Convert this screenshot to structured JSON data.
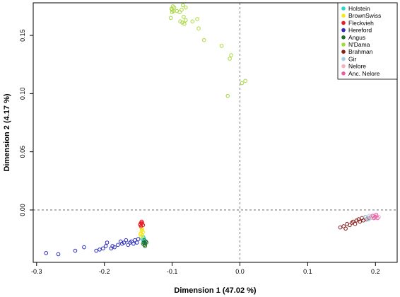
{
  "chart_data": {
    "type": "scatter",
    "xlabel": "Dimension 1   (47.02 %)",
    "ylabel": "Dimension 2   (4.17 %)",
    "xlim": [
      -0.305,
      0.232
    ],
    "ylim": [
      -0.045,
      0.178
    ],
    "x_ticks": [
      -0.3,
      -0.2,
      -0.1,
      0.0,
      0.1,
      0.2
    ],
    "x_tick_labels": [
      "-0.3",
      "-0.2",
      "-0.1",
      "0.0",
      "0.1",
      "0.2"
    ],
    "y_ticks": [
      0.0,
      0.05,
      0.1,
      0.15
    ],
    "y_tick_labels": [
      "0.00",
      "0.05",
      "0.10",
      "0.15"
    ],
    "reference_lines": {
      "x": 0,
      "y": 0
    },
    "legend_position": "top-right",
    "series": [
      {
        "name": "Holstein",
        "color": "#2ad8d2",
        "points": [
          [
            -0.143,
            -0.026
          ],
          [
            -0.142,
            -0.024
          ],
          [
            -0.141,
            -0.027
          ],
          [
            -0.144,
            -0.025
          ],
          [
            -0.14,
            -0.028
          ],
          [
            -0.143,
            -0.023
          ]
        ]
      },
      {
        "name": "BrownSwiss",
        "color": "#f6e81e",
        "points": [
          [
            -0.145,
            -0.018
          ],
          [
            -0.146,
            -0.02
          ],
          [
            -0.144,
            -0.022
          ],
          [
            -0.147,
            -0.021
          ],
          [
            -0.145,
            -0.016
          ],
          [
            -0.143,
            -0.019
          ],
          [
            -0.146,
            -0.023
          ],
          [
            -0.144,
            -0.017
          ]
        ]
      },
      {
        "name": "Fleckvieh",
        "color": "#e81c24",
        "points": [
          [
            -0.146,
            -0.011
          ],
          [
            -0.145,
            -0.012
          ],
          [
            -0.147,
            -0.013
          ],
          [
            -0.144,
            -0.011
          ],
          [
            -0.146,
            -0.014
          ],
          [
            -0.145,
            -0.01
          ],
          [
            -0.143,
            -0.013
          ],
          [
            -0.147,
            -0.012
          ]
        ]
      },
      {
        "name": "Hereford",
        "color": "#2b2bbd",
        "points": [
          [
            -0.286,
            -0.037
          ],
          [
            -0.268,
            -0.038
          ],
          [
            -0.243,
            -0.035
          ],
          [
            -0.23,
            -0.032
          ],
          [
            -0.212,
            -0.035
          ],
          [
            -0.207,
            -0.034
          ],
          [
            -0.202,
            -0.033
          ],
          [
            -0.198,
            -0.031
          ],
          [
            -0.196,
            -0.028
          ],
          [
            -0.19,
            -0.033
          ],
          [
            -0.188,
            -0.031
          ],
          [
            -0.185,
            -0.032
          ],
          [
            -0.18,
            -0.03
          ],
          [
            -0.176,
            -0.027
          ],
          [
            -0.174,
            -0.029
          ],
          [
            -0.171,
            -0.028
          ],
          [
            -0.168,
            -0.026
          ],
          [
            -0.165,
            -0.03
          ],
          [
            -0.162,
            -0.028
          ],
          [
            -0.16,
            -0.027
          ],
          [
            -0.157,
            -0.029
          ],
          [
            -0.155,
            -0.026
          ],
          [
            -0.152,
            -0.028
          ],
          [
            -0.15,
            -0.025
          ]
        ]
      },
      {
        "name": "Angus",
        "color": "#1f6b2a",
        "points": [
          [
            -0.142,
            -0.028
          ],
          [
            -0.14,
            -0.029
          ],
          [
            -0.141,
            -0.03
          ],
          [
            -0.139,
            -0.027
          ],
          [
            -0.143,
            -0.029
          ],
          [
            -0.14,
            -0.031
          ],
          [
            -0.138,
            -0.028
          ],
          [
            -0.141,
            -0.026
          ]
        ]
      },
      {
        "name": "N'Dama",
        "color": "#a8d83c",
        "points": [
          [
            -0.099,
            0.175
          ],
          [
            -0.1,
            0.172
          ],
          [
            -0.098,
            0.171
          ],
          [
            -0.101,
            0.173
          ],
          [
            -0.097,
            0.174
          ],
          [
            -0.1,
            0.17
          ],
          [
            -0.102,
            0.165
          ],
          [
            -0.093,
            0.171
          ],
          [
            -0.089,
            0.17
          ],
          [
            -0.086,
            0.172
          ],
          [
            -0.084,
            0.176
          ],
          [
            -0.08,
            0.174
          ],
          [
            -0.088,
            0.162
          ],
          [
            -0.085,
            0.161
          ],
          [
            -0.082,
            0.16
          ],
          [
            -0.083,
            0.166
          ],
          [
            -0.08,
            0.163
          ],
          [
            -0.07,
            0.162
          ],
          [
            -0.063,
            0.164
          ],
          [
            -0.061,
            0.156
          ],
          [
            -0.053,
            0.146
          ],
          [
            -0.027,
            0.141
          ],
          [
            -0.013,
            0.133
          ],
          [
            -0.015,
            0.13
          ],
          [
            -0.018,
            0.098
          ],
          [
            0.008,
            0.111
          ],
          [
            0.003,
            0.109
          ]
        ]
      },
      {
        "name": "Brahman",
        "color": "#8b1d1d",
        "points": [
          [
            0.148,
            -0.015
          ],
          [
            0.153,
            -0.014
          ],
          [
            0.156,
            -0.016
          ],
          [
            0.158,
            -0.012
          ],
          [
            0.162,
            -0.013
          ],
          [
            0.165,
            -0.011
          ],
          [
            0.167,
            -0.01
          ],
          [
            0.17,
            -0.012
          ],
          [
            0.172,
            -0.009
          ],
          [
            0.175,
            -0.008
          ],
          [
            0.177,
            -0.01
          ],
          [
            0.18,
            -0.007
          ],
          [
            0.182,
            -0.009
          ],
          [
            0.185,
            -0.006
          ],
          [
            0.187,
            -0.008
          ],
          [
            0.19,
            -0.007
          ]
        ]
      },
      {
        "name": "Gir",
        "color": "#a3cde8",
        "points": [
          [
            0.185,
            -0.006
          ],
          [
            0.188,
            -0.007
          ],
          [
            0.191,
            -0.005
          ],
          [
            0.193,
            -0.007
          ],
          [
            0.196,
            -0.006
          ],
          [
            0.19,
            -0.008
          ]
        ]
      },
      {
        "name": "Nelore",
        "color": "#f3b3c5",
        "points": [
          [
            0.192,
            -0.006
          ],
          [
            0.195,
            -0.005
          ],
          [
            0.197,
            -0.007
          ],
          [
            0.199,
            -0.006
          ],
          [
            0.202,
            -0.005
          ],
          [
            0.205,
            -0.006
          ]
        ]
      },
      {
        "name": "Anc. Nelore",
        "color": "#e85fa8",
        "points": [
          [
            0.196,
            -0.005
          ],
          [
            0.198,
            -0.007
          ],
          [
            0.2,
            -0.006
          ],
          [
            0.203,
            -0.007
          ],
          [
            0.201,
            -0.004
          ]
        ]
      }
    ]
  }
}
